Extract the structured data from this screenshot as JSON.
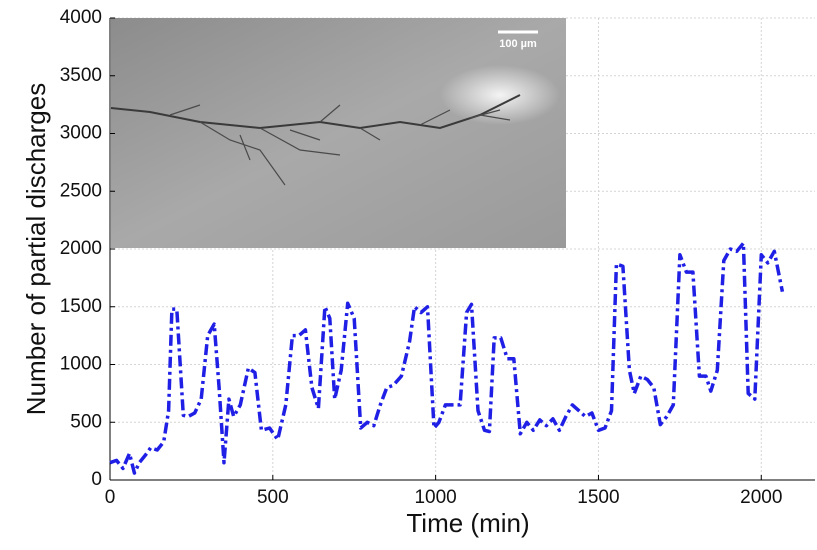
{
  "chart_data": {
    "type": "line",
    "xlabel": "Time (min)",
    "ylabel": "Number of partial discharges",
    "inset_scale_label": "100 µm",
    "x": [
      0,
      20,
      40,
      60,
      75,
      90,
      110,
      125,
      145,
      165,
      180,
      190,
      205,
      225,
      240,
      260,
      280,
      300,
      320,
      335,
      350,
      365,
      380,
      400,
      425,
      445,
      465,
      490,
      515,
      540,
      560,
      580,
      600,
      620,
      640,
      660,
      675,
      690,
      710,
      730,
      750,
      770,
      790,
      810,
      830,
      850,
      870,
      895,
      920,
      935,
      955,
      975,
      995,
      1010,
      1030,
      1050,
      1075,
      1095,
      1110,
      1130,
      1150,
      1165,
      1180,
      1200,
      1220,
      1240,
      1260,
      1280,
      1300,
      1320,
      1340,
      1360,
      1380,
      1400,
      1420,
      1440,
      1460,
      1480,
      1500,
      1520,
      1540,
      1555,
      1575,
      1595,
      1610,
      1630,
      1650,
      1670,
      1690,
      1710,
      1730,
      1750,
      1770,
      1790,
      1810,
      1830,
      1845,
      1865,
      1885,
      1905,
      1925,
      1945,
      1960,
      1980,
      2000,
      2020,
      2040,
      2065
    ],
    "series": [
      {
        "color": "#1f1fe6",
        "values": [
          150,
          170,
          100,
          230,
          60,
          150,
          220,
          280,
          260,
          330,
          600,
          1480,
          1480,
          560,
          550,
          580,
          700,
          1250,
          1350,
          800,
          150,
          700,
          550,
          650,
          970,
          930,
          430,
          450,
          350,
          650,
          1250,
          1250,
          1300,
          800,
          620,
          1500,
          1400,
          700,
          950,
          1530,
          1400,
          450,
          500,
          470,
          650,
          800,
          820,
          900,
          1200,
          1500,
          1450,
          1500,
          450,
          500,
          650,
          650,
          650,
          1450,
          1520,
          600,
          430,
          420,
          1230,
          1230,
          1050,
          1050,
          400,
          500,
          430,
          520,
          470,
          530,
          430,
          550,
          650,
          600,
          550,
          580,
          430,
          450,
          600,
          1870,
          1850,
          950,
          750,
          900,
          870,
          800,
          480,
          550,
          650,
          1950,
          1800,
          1800,
          900,
          900,
          770,
          950,
          1900,
          2000,
          1980,
          2050,
          750,
          700,
          1950,
          1880,
          1980,
          1630
        ]
      }
    ],
    "xlim": [
      0,
      2165
    ],
    "ylim": [
      0,
      4000
    ],
    "xticks": [
      0,
      500,
      1000,
      1500,
      2000
    ],
    "yticks": [
      0,
      500,
      1000,
      1500,
      2000,
      2500,
      3000,
      3500,
      4000
    ],
    "grid": true
  }
}
